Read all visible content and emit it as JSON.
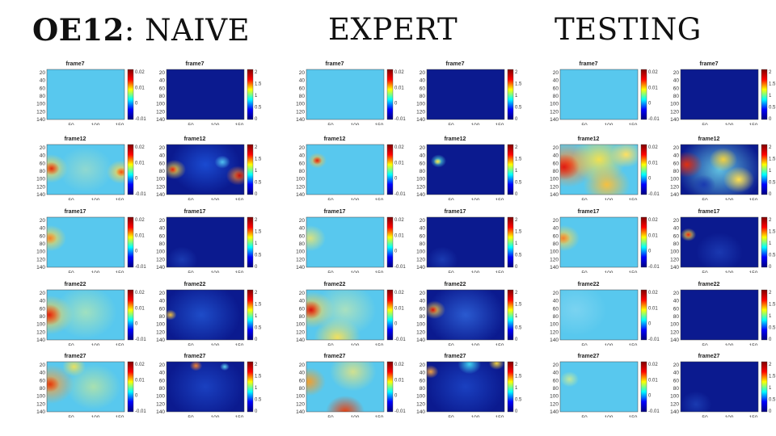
{
  "headings": {
    "naive_bold": "OE12",
    "naive_rest": ": NAIVE",
    "expert": "EXPERT",
    "testing": "TESTING"
  },
  "axes": {
    "yticks": [
      "20",
      "40",
      "60",
      "80",
      "100",
      "120",
      "140"
    ],
    "xticks": [
      "50",
      "100",
      "150"
    ],
    "left_cbar": [
      "0.02",
      "0.01",
      "0",
      "-0.01"
    ],
    "right_cbar": [
      "2",
      "1.5",
      "1",
      "0.5",
      "0"
    ]
  },
  "groups": [
    {
      "name": "naive",
      "frames": [
        "frame7",
        "frame12",
        "frame17",
        "frame22",
        "frame27"
      ],
      "left_maps": [
        "flat",
        "twoSides",
        "leftSpot",
        "leftBig",
        "leftWarm"
      ],
      "right_maps": [
        "dark",
        "twoSidesHot",
        "darkFaint",
        "darkBlob",
        "darkTopSpots"
      ]
    },
    {
      "name": "expert",
      "frames": [
        "frame7",
        "frame12",
        "frame17",
        "frame22",
        "frame27"
      ],
      "left_maps": [
        "flat",
        "smallSpot",
        "leftSpotSoft",
        "leftBigBottom",
        "leftEdgeBottom"
      ],
      "right_maps": [
        "dark",
        "smallBlob",
        "darkFaint",
        "darkBlobMid",
        "darkTopBottom"
      ]
    },
    {
      "name": "testing",
      "frames": [
        "frame7",
        "frame12",
        "frame17",
        "frame22",
        "frame27"
      ],
      "left_maps": [
        "flat",
        "warmMottled",
        "leftSpot",
        "flatLight",
        "flatSpot"
      ],
      "right_maps": [
        "dark",
        "mottledHot",
        "darkSpot",
        "dark",
        "darkFaint"
      ]
    }
  ],
  "colors": {
    "background": "#ffffff",
    "left_base": "#58c8ee",
    "right_base": "#0b1a8f"
  }
}
